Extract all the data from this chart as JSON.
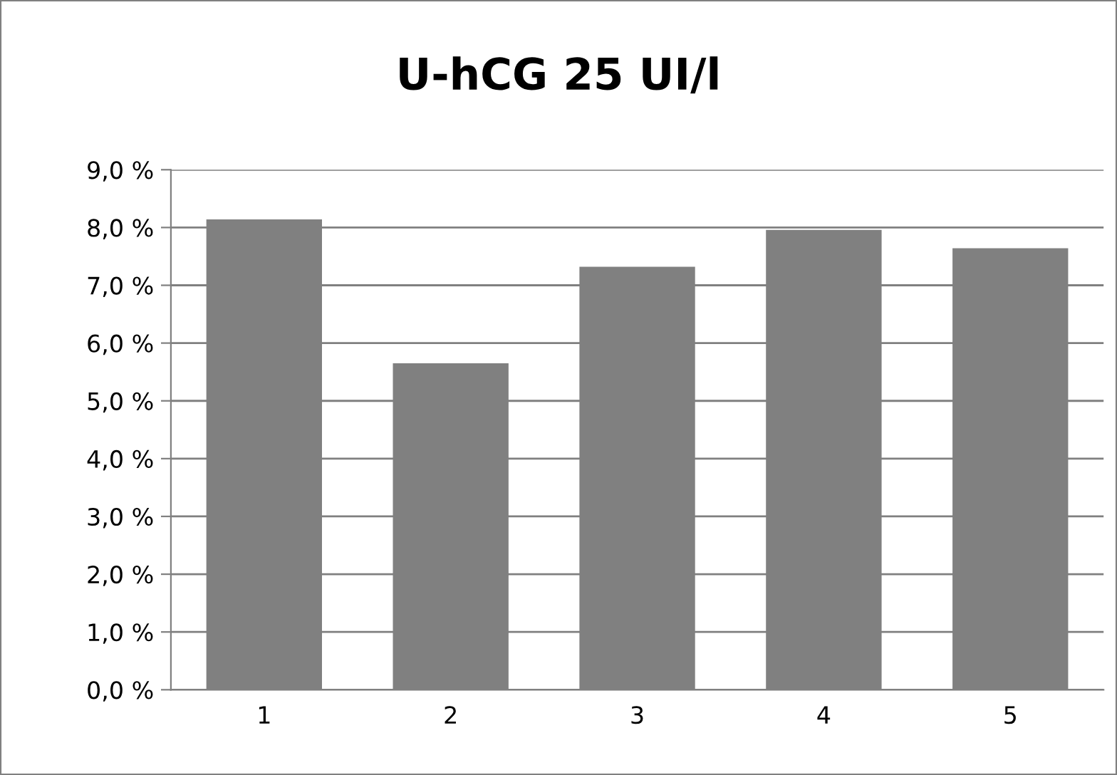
{
  "chart_data": {
    "type": "bar",
    "title": "U-hCG 25 UI/l",
    "categories": [
      "1",
      "2",
      "3",
      "4",
      "5"
    ],
    "values": [
      8.14,
      5.65,
      7.32,
      7.96,
      7.64
    ],
    "color": "#808080",
    "ylim": [
      0,
      9
    ],
    "yticks": [
      {
        "value": 0,
        "label": "0,0 %"
      },
      {
        "value": 1,
        "label": "1,0 %"
      },
      {
        "value": 2,
        "label": "2,0 %"
      },
      {
        "value": 3,
        "label": "3,0 %"
      },
      {
        "value": 4,
        "label": "4,0 %"
      },
      {
        "value": 5,
        "label": "5,0 %"
      },
      {
        "value": 6,
        "label": "6,0 %"
      },
      {
        "value": 7,
        "label": "7,0 %"
      },
      {
        "value": 8,
        "label": "8,0 %"
      },
      {
        "value": 9,
        "label": "9,0 %"
      }
    ],
    "grid": "y"
  }
}
